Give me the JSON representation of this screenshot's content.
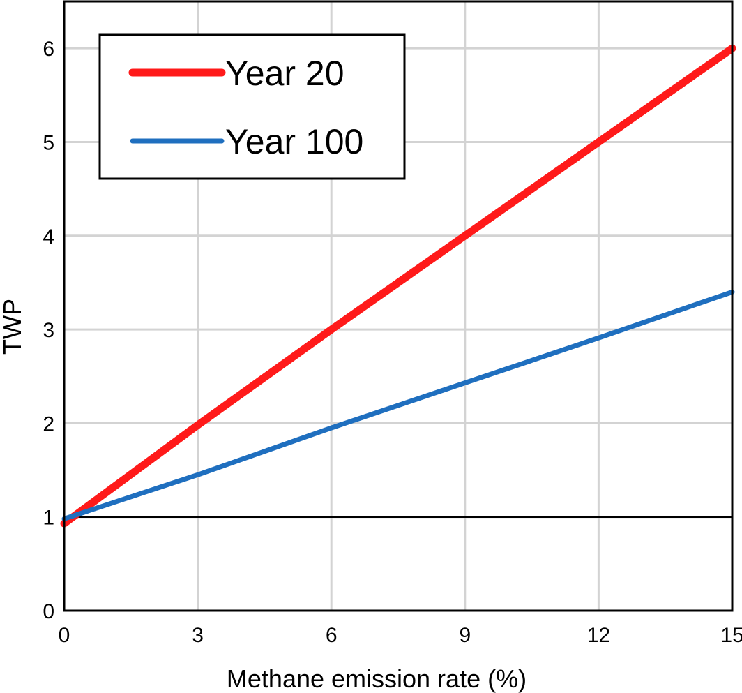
{
  "chart_data": {
    "type": "line",
    "title": "",
    "xlabel": "Methane emission rate (%)",
    "ylabel": "TWP",
    "xlim": [
      0,
      15
    ],
    "ylim": [
      0,
      6.5
    ],
    "xticks": [
      0,
      3,
      6,
      9,
      12,
      15
    ],
    "yticks": [
      0,
      1,
      2,
      3,
      4,
      5,
      6
    ],
    "grid": true,
    "reference_line": {
      "y": 1,
      "color": "#000000"
    },
    "legend": {
      "placement": "top-left"
    },
    "series": [
      {
        "name": "Year 20",
        "color": "#ff1a1a",
        "x": [
          0,
          3,
          6,
          9,
          12,
          15
        ],
        "y": [
          0.93,
          1.98,
          3.0,
          4.0,
          5.0,
          6.0
        ]
      },
      {
        "name": "Year 100",
        "color": "#1f6fbf",
        "x": [
          0,
          3,
          6,
          9,
          12,
          15
        ],
        "y": [
          0.98,
          1.45,
          1.95,
          2.43,
          2.91,
          3.4
        ]
      }
    ]
  }
}
